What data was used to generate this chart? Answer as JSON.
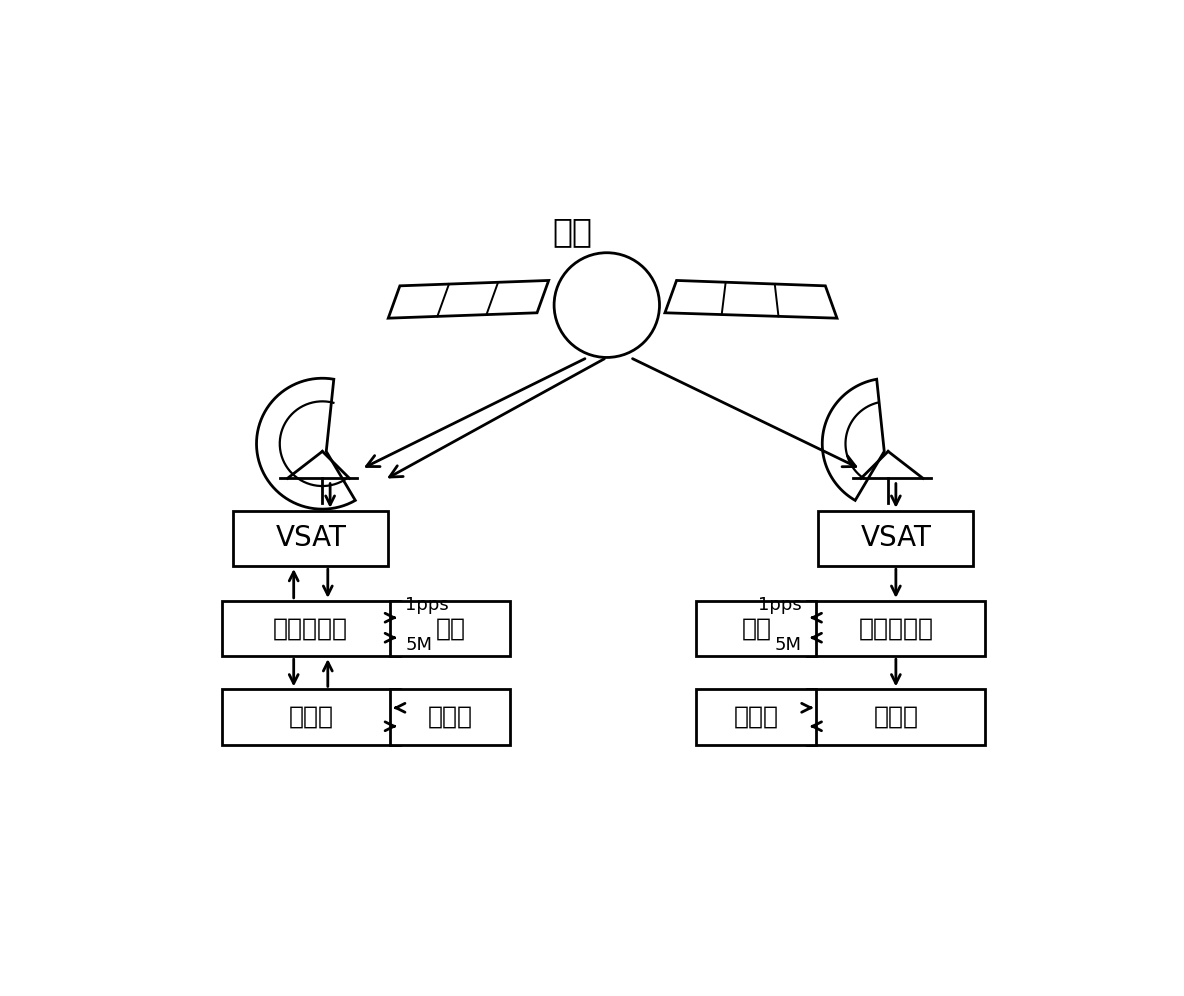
{
  "title": "卫星",
  "bg_color": "#ffffff",
  "box_color": "#ffffff",
  "box_edge": "#000000",
  "text_color": "#000000",
  "left_vsat_label": "VSAT",
  "right_vsat_label": "VSAT",
  "left_modem_label": "调制解调器",
  "right_modem_label": "调制解调器",
  "left_clock_label": "主钟",
  "right_clock_label": "主钟",
  "left_computer_label": "计算机",
  "right_computer_label": "计算机",
  "left_internet_label": "互联网",
  "right_internet_label": "互联网",
  "label_1pps_left": "1pps",
  "label_5M_left": "5M",
  "label_1pps_right": "1pps",
  "label_5M_right": "5M",
  "font_size_title": 24,
  "font_size_box_large": 20,
  "font_size_box": 18,
  "font_size_small": 13
}
